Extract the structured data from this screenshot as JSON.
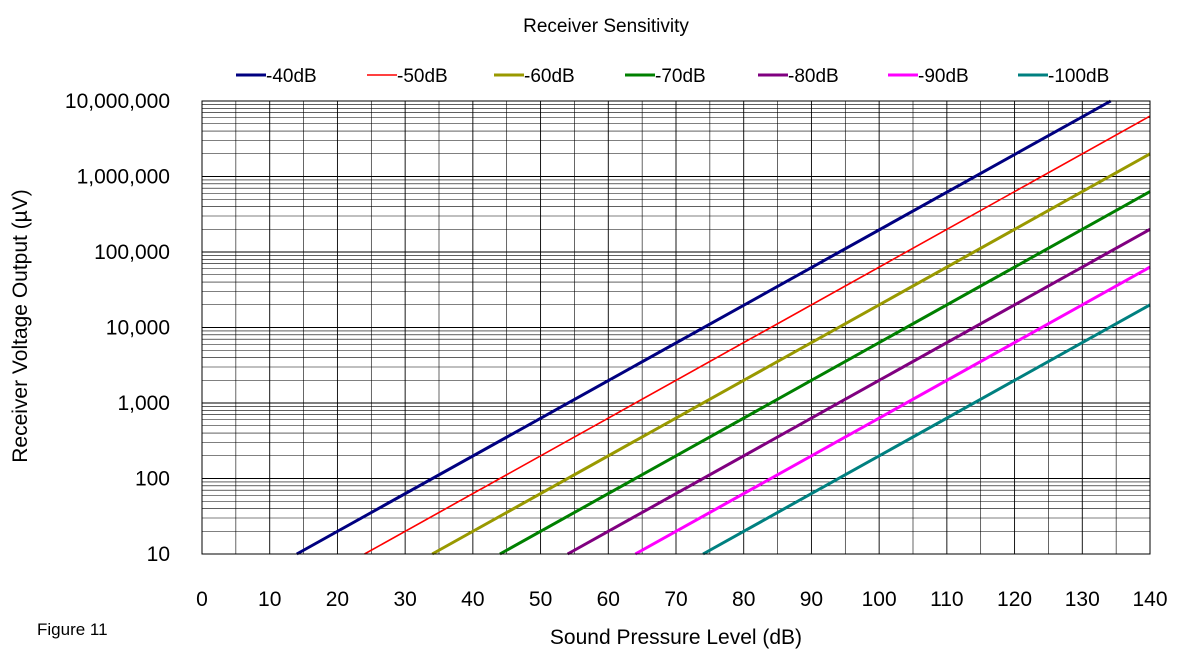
{
  "figure_label": "Figure 11",
  "chart_data": {
    "type": "line",
    "title": "Receiver Sensitivity",
    "xlabel": "Sound Pressure Level (dB)",
    "ylabel": "Receiver Voltage Output (µV)",
    "xlim": [
      0,
      140
    ],
    "ylim": [
      10,
      10000000
    ],
    "y_scale": "log",
    "x_ticks": [
      0,
      10,
      20,
      30,
      40,
      50,
      60,
      70,
      80,
      90,
      100,
      110,
      120,
      130,
      140
    ],
    "x_tick_labels": [
      "0",
      "10",
      "20",
      "30",
      "40",
      "50",
      "60",
      "70",
      "80",
      "90",
      "100",
      "110",
      "120",
      "130",
      "140"
    ],
    "y_ticks": [
      10,
      100,
      1000,
      10000,
      100000,
      1000000,
      10000000
    ],
    "y_tick_labels": [
      "10",
      "100",
      "1,000",
      "10,000",
      "100,000",
      "1,000,000",
      "10,000,000"
    ],
    "grid": true,
    "legend_position": "top",
    "series": [
      {
        "name": "-40dB",
        "color": "#000080",
        "x": [
          14,
          134.2
        ],
        "y": [
          10,
          10000000
        ]
      },
      {
        "name": "-50dB",
        "color": "#ff0000",
        "x": [
          24,
          140
        ],
        "y": [
          10,
          6309573
        ]
      },
      {
        "name": "-60dB",
        "color": "#999900",
        "x": [
          34,
          140
        ],
        "y": [
          10,
          1995262
        ]
      },
      {
        "name": "-70dB",
        "color": "#008000",
        "x": [
          44,
          140
        ],
        "y": [
          10,
          630957
        ]
      },
      {
        "name": "-80dB",
        "color": "#800080",
        "x": [
          54,
          140
        ],
        "y": [
          10,
          199526
        ]
      },
      {
        "name": "-90dB",
        "color": "#ff00ff",
        "x": [
          64,
          140
        ],
        "y": [
          10,
          63096
        ]
      },
      {
        "name": "-100dB",
        "color": "#008080",
        "x": [
          74,
          140
        ],
        "y": [
          10,
          19953
        ]
      }
    ]
  }
}
